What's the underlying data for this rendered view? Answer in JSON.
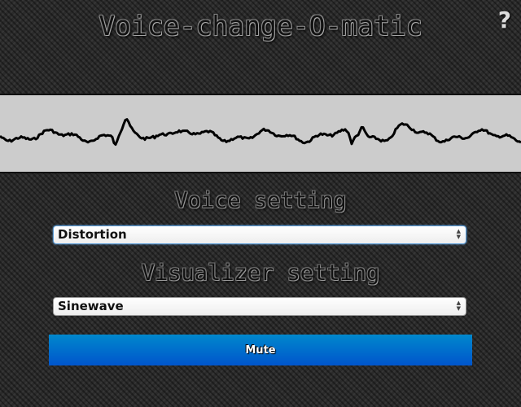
{
  "header": {
    "title": "Voice-change-O-matic",
    "help_label": "?",
    "help_icon": "question-mark-icon"
  },
  "voice": {
    "label": "Voice setting",
    "selected": "Distortion"
  },
  "visualizer": {
    "label": "Visualizer setting",
    "selected": "Sinewave"
  },
  "controls": {
    "mute_label": "Mute"
  },
  "colors": {
    "canvas_background": "#cccccc",
    "waveform": "#000000",
    "button_top": "#0088cc",
    "button_bottom": "#0055cc"
  }
}
